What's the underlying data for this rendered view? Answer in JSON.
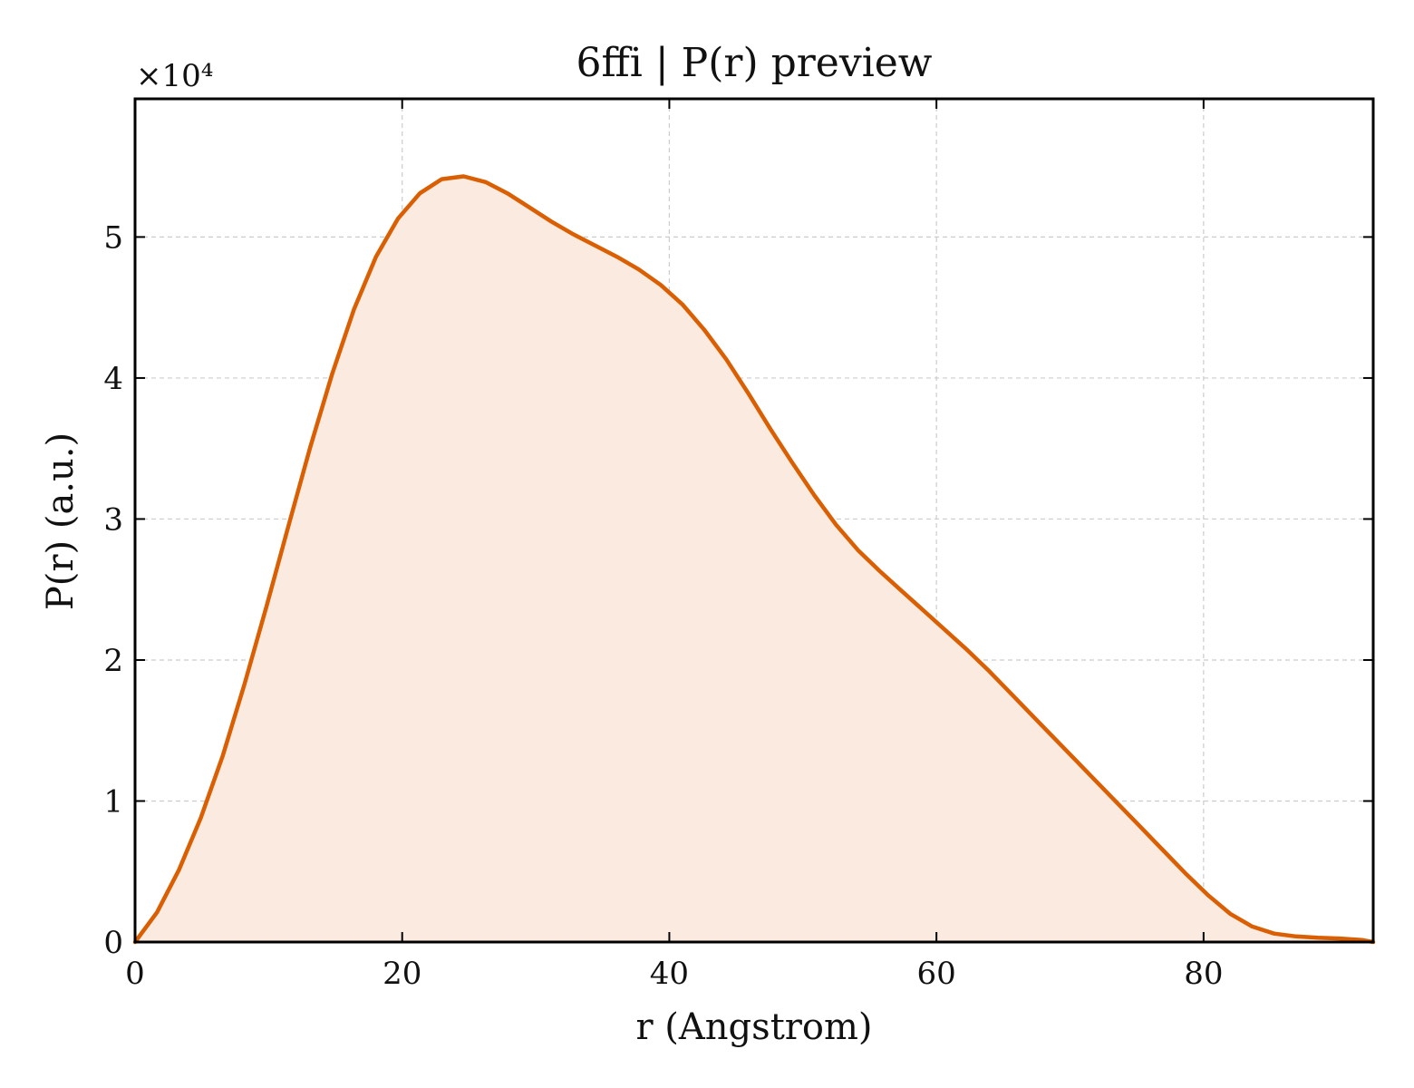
{
  "chart_data": {
    "type": "area",
    "title": "6ffi | P(r) preview",
    "xlabel": "r (Angstrom)",
    "ylabel": "P(r) (a.u.)",
    "y_offset_text": "×10⁴",
    "y_multiplier": 10000,
    "xlim": [
      0,
      92.7
    ],
    "ylim": [
      0,
      59800
    ],
    "xticks": [
      0,
      20,
      40,
      60,
      80
    ],
    "yticks": [
      0,
      10000,
      20000,
      30000,
      40000,
      50000
    ],
    "ytick_labels": [
      "0",
      "1",
      "2",
      "3",
      "4",
      "5"
    ],
    "grid": true,
    "line_color": "#d95f02",
    "fill_color": "#fbeadf",
    "series": [
      {
        "x": [
          0,
          1.64,
          3.28,
          4.92,
          6.56,
          8.2,
          9.84,
          11.48,
          13.12,
          14.76,
          16.4,
          18.04,
          19.68,
          21.32,
          22.96,
          24.6,
          26.24,
          27.88,
          29.52,
          31.16,
          32.8,
          34.44,
          36.08,
          37.72,
          39.36,
          41.0,
          42.64,
          44.28,
          45.92,
          47.56,
          49.2,
          50.84,
          52.48,
          54.12,
          55.76,
          57.4,
          59.04,
          60.68,
          62.32,
          63.96,
          65.6,
          67.24,
          68.88,
          70.52,
          72.16,
          73.8,
          75.44,
          77.08,
          78.72,
          80.36,
          82.0,
          83.64,
          85.28,
          86.92,
          88.56,
          90.2,
          91.84,
          92.7
        ],
        "y": [
          0,
          2100,
          5100,
          8800,
          13200,
          18300,
          23800,
          29500,
          35100,
          40300,
          44900,
          48600,
          51300,
          53100,
          54100,
          54300,
          53900,
          53100,
          52100,
          51100,
          50200,
          49400,
          48600,
          47700,
          46600,
          45200,
          43400,
          41300,
          38900,
          36400,
          34000,
          31700,
          29600,
          27800,
          26300,
          24900,
          23500,
          22100,
          20700,
          19200,
          17600,
          16000,
          14400,
          12800,
          11200,
          9600,
          8000,
          6400,
          4800,
          3300,
          2000,
          1100,
          600,
          400,
          300,
          250,
          150,
          0
        ]
      }
    ]
  }
}
